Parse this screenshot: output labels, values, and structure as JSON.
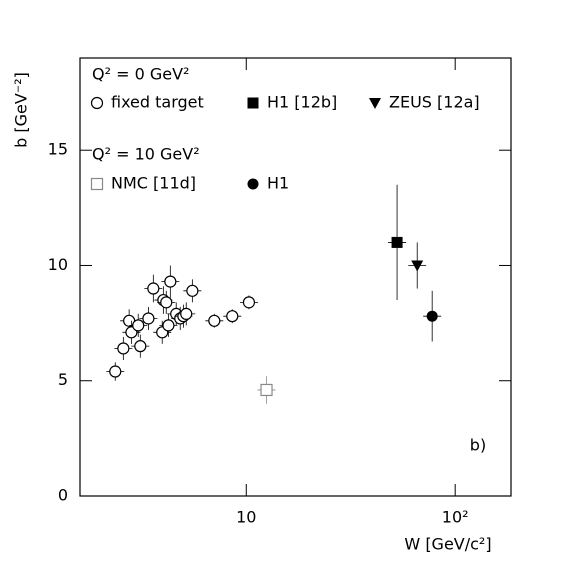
{
  "chart_data": {
    "type": "scatter",
    "log_x": true,
    "xlabel": "W [GeV/c²]",
    "ylabel": "b [GeV⁻²]",
    "annotation": "b)",
    "legend_titles": [
      "Q² = 0 GeV²",
      "Q² = 10 GeV²"
    ],
    "xlim": [
      1.6,
      185
    ],
    "ylim": [
      0,
      19
    ],
    "xticks": [
      10,
      {
        "value": 100,
        "label": "10²"
      }
    ],
    "yticks": [
      0,
      5,
      10,
      15
    ],
    "series": [
      {
        "name": "fixed target",
        "marker": "open-circle",
        "color": "#000000",
        "x": [
          2.36,
          2.58,
          2.75,
          2.82,
          3.11,
          3.04,
          3.4,
          3.59,
          3.96,
          4.01,
          4.14,
          4.33,
          4.24,
          4.62,
          4.83,
          5.0,
          5.16,
          5.52,
          7.03,
          8.57,
          10.3
        ],
        "y": [
          5.4,
          6.4,
          7.6,
          7.1,
          6.5,
          7.4,
          7.7,
          9.0,
          7.1,
          8.5,
          8.4,
          9.3,
          7.4,
          7.9,
          7.7,
          7.8,
          7.9,
          8.9,
          7.6,
          7.8,
          8.4
        ],
        "yerr": [
          0.4,
          0.5,
          0.5,
          0.5,
          0.5,
          0.5,
          0.5,
          0.6,
          0.5,
          0.6,
          0.5,
          0.7,
          0.5,
          0.5,
          0.5,
          0.5,
          0.5,
          0.5,
          0.3,
          0.3,
          0.3
        ]
      },
      {
        "name": "H1 [12b]",
        "marker": "filled-square",
        "color": "#000000",
        "x": [
          52.7
        ],
        "y": [
          11.0
        ],
        "yerr": [
          2.5
        ]
      },
      {
        "name": "ZEUS [12a]",
        "marker": "filled-triangle",
        "color": "#000000",
        "x": [
          65.8
        ],
        "y": [
          10.0
        ],
        "yerr": [
          1.0
        ]
      },
      {
        "name": "NMC [11d]",
        "marker": "open-square",
        "color": "#888888",
        "x": [
          12.5
        ],
        "y": [
          4.6
        ],
        "yerr": [
          0.6
        ]
      },
      {
        "name": "H1",
        "marker": "filled-circle",
        "color": "#000000",
        "x": [
          77.6
        ],
        "y": [
          7.8
        ],
        "yerr": [
          1.1
        ]
      }
    ]
  }
}
